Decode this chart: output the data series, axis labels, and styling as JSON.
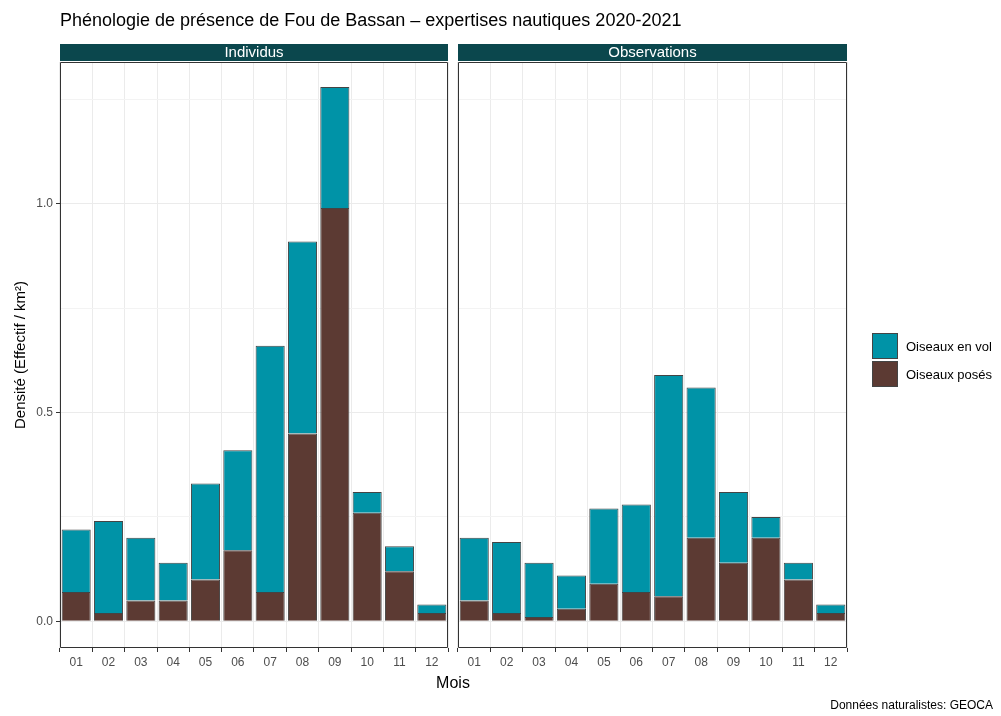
{
  "chart_data": [
    {
      "type": "bar",
      "title": "Phénologie de présence de Fou de Bassan – expertises nautiques 2020-2021",
      "subtitle": "Individus",
      "xlabel": "Mois",
      "ylabel": "Densité (Effectif / km²)",
      "stacked": true,
      "grid": true,
      "legend": false,
      "categories": [
        "01",
        "02",
        "03",
        "04",
        "05",
        "06",
        "07",
        "08",
        "09",
        "10",
        "11",
        "12"
      ],
      "series": [
        {
          "color": "#5c3a33",
          "values": [
            0.07,
            0.02,
            0.05,
            0.05,
            0.1,
            0.17,
            0.07,
            0.45,
            0.99,
            0.26,
            0.12,
            0.02
          ]
        },
        {
          "color": "#0093a7",
          "values": [
            0.15,
            0.22,
            0.15,
            0.09,
            0.23,
            0.24,
            0.59,
            0.46,
            0.29,
            0.05,
            0.06,
            0.02
          ]
        }
      ],
      "ylim": [
        -0.064,
        1.34
      ],
      "yticks": [
        {
          "value": 0,
          "label": "0.0"
        },
        {
          "value": 0.25,
          "label": null
        },
        {
          "value": 0.5,
          "label": "0.5"
        },
        {
          "value": 0.75,
          "label": null
        },
        {
          "value": 1,
          "label": "1.0"
        },
        {
          "value": 1.25,
          "label": null
        }
      ]
    },
    {
      "type": "bar",
      "subtitle": "Observations",
      "stacked": true,
      "grid": true,
      "legend": "right",
      "tick_labels": "x",
      "categories": [
        "01",
        "02",
        "03",
        "04",
        "05",
        "06",
        "07",
        "08",
        "09",
        "10",
        "11",
        "12"
      ],
      "series": [
        {
          "name": "Oiseaux posés",
          "color": "#5c3a33",
          "values": [
            0.05,
            0.02,
            0.01,
            0.03,
            0.09,
            0.07,
            0.06,
            0.2,
            0.14,
            0.2,
            0.1,
            0.02
          ]
        },
        {
          "name": "Oiseaux en vol",
          "color": "#0093a7",
          "values": [
            0.15,
            0.17,
            0.13,
            0.08,
            0.18,
            0.21,
            0.53,
            0.36,
            0.17,
            0.05,
            0.04,
            0.02
          ]
        }
      ],
      "ylim": [
        -0.064,
        1.34
      ],
      "yticks": [
        0,
        {
          "value": 0.25,
          "label": null
        },
        0.5,
        {
          "value": 0.75,
          "label": null
        },
        1,
        {
          "value": 1.25,
          "label": null
        }
      ],
      "annotations": [
        "Données naturalistes: GEOCA"
      ]
    }
  ]
}
